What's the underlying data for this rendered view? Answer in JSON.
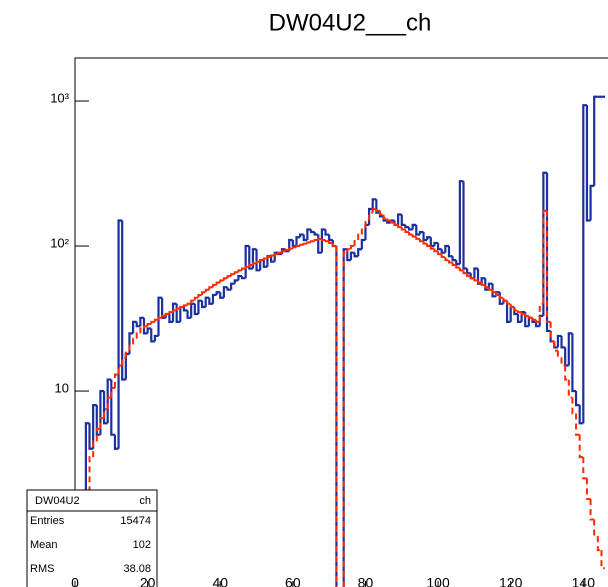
{
  "chart_data": {
    "type": "histogram",
    "title": "DW04U2___ch",
    "log_y": true,
    "bins": [
      0,
      1,
      2,
      3,
      4,
      5,
      6,
      7,
      8,
      9,
      10,
      11,
      12,
      13,
      14,
      15,
      16,
      17,
      18,
      19,
      20,
      21,
      22,
      23,
      24,
      25,
      26,
      27,
      28,
      29,
      30,
      31,
      32,
      33,
      34,
      35,
      36,
      37,
      38,
      39,
      40,
      41,
      42,
      43,
      44,
      45,
      46,
      47,
      48,
      49,
      50,
      51,
      52,
      53,
      54,
      55,
      56,
      57,
      58,
      59,
      60,
      61,
      62,
      63,
      64,
      65,
      66,
      67,
      68,
      69,
      70,
      71,
      72,
      73,
      74,
      75,
      76,
      77,
      78,
      79,
      80,
      81,
      82,
      83,
      84,
      85,
      86,
      87,
      88,
      89,
      90,
      91,
      92,
      93,
      94,
      95,
      96,
      97,
      98,
      99,
      100,
      101,
      102,
      103,
      104,
      105,
      106,
      107,
      108,
      109,
      110,
      111,
      112,
      113,
      114,
      115,
      116,
      117,
      118,
      119,
      120,
      121,
      122,
      123,
      124,
      125,
      126,
      127,
      128,
      129,
      130,
      131,
      132,
      133,
      134,
      135,
      136,
      137,
      138,
      139,
      140,
      141,
      142,
      143,
      144,
      145,
      146
    ],
    "series": [
      {
        "color": "#1a2fa0",
        "dashed": false,
        "values": [
          0,
          0,
          0,
          6,
          4,
          8,
          5,
          10,
          6,
          12,
          5,
          4,
          150,
          12,
          18,
          25,
          30,
          28,
          32,
          25,
          27,
          22,
          24,
          44,
          32,
          34,
          30,
          40,
          30,
          38,
          36,
          32,
          40,
          34,
          42,
          38,
          44,
          40,
          46,
          48,
          44,
          52,
          50,
          55,
          58,
          62,
          60,
          100,
          70,
          95,
          68,
          80,
          72,
          85,
          78,
          90,
          88,
          95,
          92,
          110,
          100,
          115,
          120,
          110,
          130,
          125,
          120,
          90,
          130,
          120,
          110,
          100,
          0,
          0,
          95,
          80,
          90,
          85,
          95,
          110,
          140,
          180,
          210,
          170,
          160,
          150,
          145,
          150,
          140,
          165,
          140,
          135,
          130,
          140,
          120,
          125,
          110,
          115,
          100,
          105,
          95,
          90,
          100,
          85,
          80,
          75,
          280,
          70,
          65,
          60,
          70,
          55,
          60,
          50,
          55,
          45,
          48,
          40,
          42,
          30,
          38,
          34,
          30,
          35,
          28,
          32,
          30,
          28,
          33,
          320,
          26,
          22,
          20,
          24,
          20,
          15,
          25,
          10,
          8,
          6,
          936,
          150,
          260,
          1070,
          1070,
          1070
        ]
      },
      {
        "color": "#ff2a00",
        "dashed": true,
        "values": [
          0,
          0,
          0,
          2,
          3.5,
          4.5,
          5.5,
          6.5,
          7.5,
          9,
          10.5,
          13,
          15,
          17,
          19,
          21,
          23,
          25,
          27,
          28,
          29,
          30,
          31,
          32,
          33,
          34,
          35,
          36,
          37,
          38,
          39,
          40,
          42,
          44,
          46,
          48,
          50,
          52,
          54,
          56,
          58,
          60,
          62,
          64,
          66,
          68,
          70,
          72,
          74,
          76,
          78,
          80,
          82,
          84,
          86,
          88,
          90,
          92,
          94,
          96,
          98,
          100,
          102,
          104,
          106,
          108,
          110,
          112,
          110,
          108,
          105,
          100,
          0,
          0,
          90,
          95,
          100,
          110,
          120,
          135,
          150,
          170,
          180,
          175,
          165,
          155,
          150,
          145,
          140,
          135,
          130,
          125,
          120,
          116,
          112,
          108,
          104,
          100,
          96,
          92,
          88,
          84,
          80,
          77,
          74,
          71,
          68,
          65,
          62,
          60,
          58,
          56,
          54,
          52,
          50,
          48,
          46,
          44,
          42,
          40,
          38,
          36,
          35,
          34,
          33,
          32,
          31,
          30,
          40,
          175,
          30,
          22,
          19,
          17,
          15,
          12,
          9,
          7,
          5,
          3.5,
          2.5,
          1.8,
          1.3,
          1,
          0.8,
          0.6
        ]
      }
    ],
    "xlim": [
      0,
      146.8
    ],
    "xticks": [
      0,
      20,
      40,
      60,
      80,
      100,
      120,
      140
    ],
    "ylim": [
      0.38,
      1980
    ],
    "yticks": [
      {
        "value": 10,
        "label": "10"
      },
      {
        "value": 100,
        "label": "10²"
      },
      {
        "value": 1000,
        "label": "10³"
      }
    ],
    "stats": {
      "name": "DW04U2",
      "var": "ch",
      "rows": [
        [
          "Entries",
          "15474"
        ],
        [
          "Mean",
          "102"
        ],
        [
          "RMS",
          "38.08"
        ]
      ]
    }
  }
}
